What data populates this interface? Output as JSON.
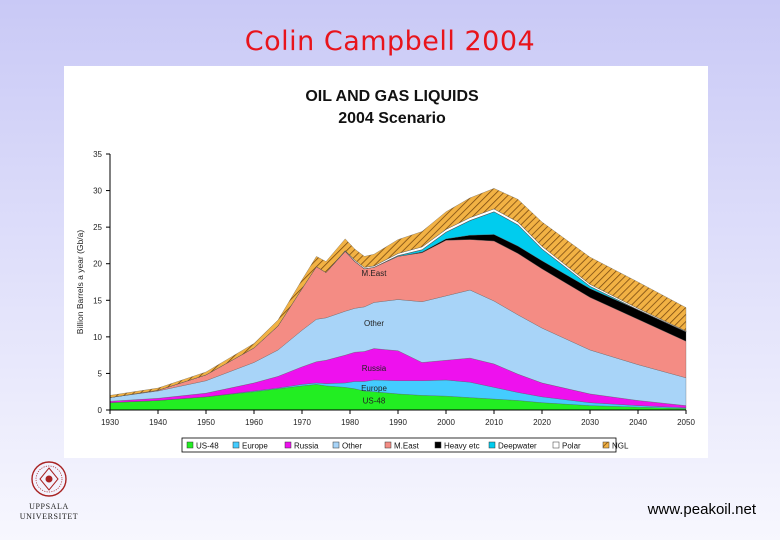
{
  "slide": {
    "title": "Colin Campbell 2004",
    "footer_url": "www.peakoil.net",
    "logo_line1": "UPPSALA",
    "logo_line2": "UNIVERSITET"
  },
  "chart_data": {
    "type": "area",
    "title": "OIL AND GAS LIQUIDS",
    "subtitle": "2004 Scenario",
    "ylabel": "Billion Barrels a year (Gb/a)",
    "xlabel": "",
    "xlim": [
      1930,
      2050
    ],
    "ylim": [
      0,
      35
    ],
    "x_ticks": [
      1930,
      1940,
      1950,
      1960,
      1970,
      1980,
      1990,
      2000,
      2010,
      2020,
      2030,
      2040,
      2050
    ],
    "x_tick_labels": [
      "1930",
      "1940",
      "1950",
      "1960",
      "1970",
      "1980",
      "1990",
      "2000",
      "2010",
      "2020",
      "2030",
      "2040",
      "2050"
    ],
    "y_ticks": [
      0,
      5,
      10,
      15,
      20,
      25,
      30,
      35
    ],
    "grid": false,
    "legend_position": "bottom",
    "x": [
      1930,
      1940,
      1950,
      1960,
      1965,
      1970,
      1973,
      1975,
      1979,
      1981,
      1983,
      1985,
      1990,
      1995,
      2000,
      2005,
      2010,
      2015,
      2020,
      2030,
      2040,
      2050
    ],
    "series": [
      {
        "name": "US-48",
        "color": "#22ee22",
        "values": [
          1.0,
          1.3,
          1.8,
          2.5,
          2.9,
          3.3,
          3.5,
          3.3,
          3.1,
          2.9,
          2.6,
          2.5,
          2.2,
          2.0,
          1.9,
          1.7,
          1.5,
          1.3,
          1.0,
          0.6,
          0.4,
          0.2
        ]
      },
      {
        "name": "Europe",
        "color": "#44ccff",
        "values": [
          0.0,
          0.0,
          0.0,
          0.1,
          0.1,
          0.2,
          0.2,
          0.3,
          0.6,
          1.0,
          1.3,
          1.6,
          1.8,
          2.0,
          2.2,
          2.1,
          1.6,
          1.1,
          0.8,
          0.4,
          0.2,
          0.1
        ]
      },
      {
        "name": "Russia",
        "color": "#ee11ee",
        "values": [
          0.2,
          0.3,
          0.5,
          1.1,
          1.6,
          2.4,
          2.9,
          3.2,
          3.8,
          4.0,
          4.1,
          4.3,
          4.1,
          2.5,
          2.7,
          3.3,
          3.2,
          2.5,
          1.9,
          1.2,
          0.7,
          0.3
        ]
      },
      {
        "name": "Other",
        "color": "#a8d4f8",
        "values": [
          0.5,
          1.0,
          1.7,
          2.8,
          3.6,
          5.0,
          5.8,
          5.8,
          6.0,
          6.0,
          6.1,
          6.3,
          7.0,
          8.3,
          8.8,
          9.3,
          8.6,
          8.1,
          7.5,
          6.0,
          4.9,
          3.8
        ]
      },
      {
        "name": "M.East",
        "color": "#f48c84",
        "values": [
          0.0,
          0.1,
          0.8,
          2.0,
          3.3,
          5.7,
          7.2,
          6.2,
          8.2,
          6.4,
          5.2,
          4.8,
          5.9,
          6.7,
          7.6,
          6.9,
          8.2,
          8.4,
          8.1,
          7.2,
          6.2,
          5.0
        ]
      },
      {
        "name": "Heavy etc",
        "color": "#000000",
        "values": [
          0.0,
          0.0,
          0.0,
          0.0,
          0.0,
          0.0,
          0.0,
          0.0,
          0.0,
          0.0,
          0.0,
          0.0,
          0.0,
          0.1,
          0.2,
          0.6,
          0.9,
          1.0,
          1.1,
          1.2,
          1.3,
          1.3
        ]
      },
      {
        "name": "Deepwater",
        "color": "#00ccee",
        "values": [
          0.0,
          0.0,
          0.0,
          0.0,
          0.0,
          0.0,
          0.0,
          0.0,
          0.0,
          0.0,
          0.0,
          0.0,
          0.1,
          0.3,
          0.9,
          2.0,
          3.1,
          2.9,
          1.6,
          0.3,
          0.0,
          0.0
        ]
      },
      {
        "name": "Polar",
        "color": "#ffffff",
        "values": [
          0.0,
          0.0,
          0.0,
          0.0,
          0.0,
          0.0,
          0.0,
          0.0,
          0.1,
          0.2,
          0.2,
          0.2,
          0.3,
          0.4,
          0.4,
          0.4,
          0.4,
          0.4,
          0.4,
          0.3,
          0.2,
          0.1
        ]
      },
      {
        "name": "NGL",
        "color": "#d8902a",
        "values": [
          0.3,
          0.3,
          0.4,
          0.6,
          0.8,
          1.2,
          1.4,
          1.5,
          1.6,
          1.5,
          1.5,
          1.6,
          1.9,
          2.1,
          2.4,
          2.7,
          2.8,
          3.1,
          3.3,
          3.7,
          3.6,
          3.2
        ]
      }
    ],
    "annotations": [
      "M.East",
      "Other",
      "Russia",
      "Europe",
      "US-48"
    ],
    "legend": [
      "US-48",
      "Europe",
      "Russia",
      "Other",
      "M.East",
      "Heavy etc",
      "Deepwater",
      "Polar",
      "NGL"
    ]
  }
}
